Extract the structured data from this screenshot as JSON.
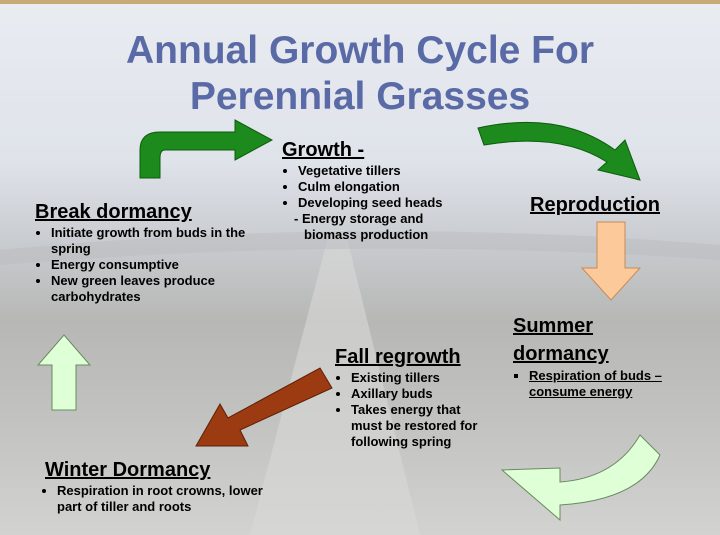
{
  "title": "Annual Growth Cycle For Perennial Grasses",
  "stages": [
    {
      "heading": "Growth -",
      "bullets": [
        "Vegetative tillers",
        "Culm elongation",
        "Developing seed heads"
      ],
      "sub_bullets": [
        "Energy storage and biomass production"
      ]
    },
    {
      "heading": "Reproduction"
    },
    {
      "heading": "Summer dormancy",
      "bullets": [
        "Respiration of buds – consume energy"
      ]
    },
    {
      "heading": "Fall regrowth",
      "bullets": [
        "Existing tillers",
        "Axillary buds",
        "Takes energy that must be restored for following spring"
      ]
    },
    {
      "heading": "Winter Dormancy",
      "bullets": [
        "Respiration in root crowns, lower part of tiller and roots"
      ]
    },
    {
      "heading": "Break dormancy",
      "bullets": [
        "Initiate growth from buds in the spring",
        "Energy consumptive",
        "New green leaves produce carbohydrates"
      ]
    }
  ]
}
